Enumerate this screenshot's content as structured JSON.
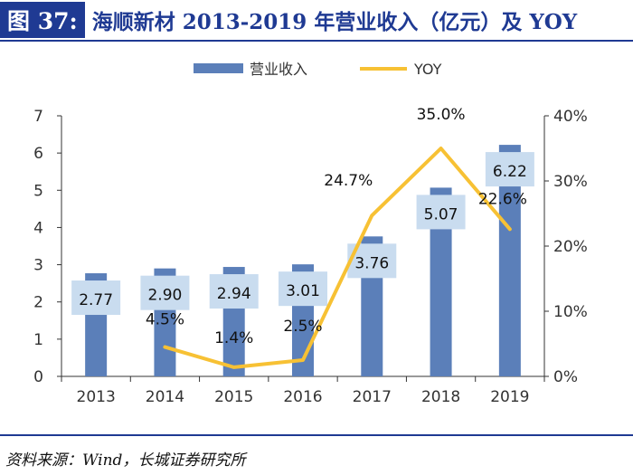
{
  "header": {
    "figure_tag": "图 37:",
    "title": "海顺新材 2013-2019 年营业收入（亿元）及 YOY"
  },
  "source": "资料来源：Wind，长城证券研究所",
  "colors": {
    "bar": "#5b7fb9",
    "line": "#f7c134",
    "label_bg": "#c9dcef",
    "brand": "#1f3a93"
  },
  "chart_data": {
    "type": "bar",
    "categories": [
      "2013",
      "2014",
      "2015",
      "2016",
      "2017",
      "2018",
      "2019"
    ],
    "series": [
      {
        "name": "营业收入",
        "type": "bar",
        "axis": "left",
        "values": [
          2.77,
          2.9,
          2.94,
          3.01,
          3.76,
          5.07,
          6.22
        ],
        "labels": [
          "2.77",
          "2.90",
          "2.94",
          "3.01",
          "3.76",
          "5.07",
          "6.22"
        ]
      },
      {
        "name": "YOY",
        "type": "line",
        "axis": "right",
        "values": [
          null,
          4.5,
          1.4,
          2.5,
          24.7,
          35.0,
          22.6
        ],
        "labels": [
          "",
          "4.5%",
          "1.4%",
          "2.5%",
          "24.7%",
          "35.0%",
          "22.6%"
        ]
      }
    ],
    "y_left": {
      "min": 0,
      "max": 7,
      "ticks": [
        "0",
        "1",
        "2",
        "3",
        "4",
        "5",
        "6",
        "7"
      ]
    },
    "y_right": {
      "min": 0,
      "max": 40,
      "ticks": [
        "0%",
        "10%",
        "20%",
        "30%",
        "40%"
      ]
    },
    "legend": [
      "营业收入",
      "YOY"
    ],
    "legend_position": "top-center"
  }
}
